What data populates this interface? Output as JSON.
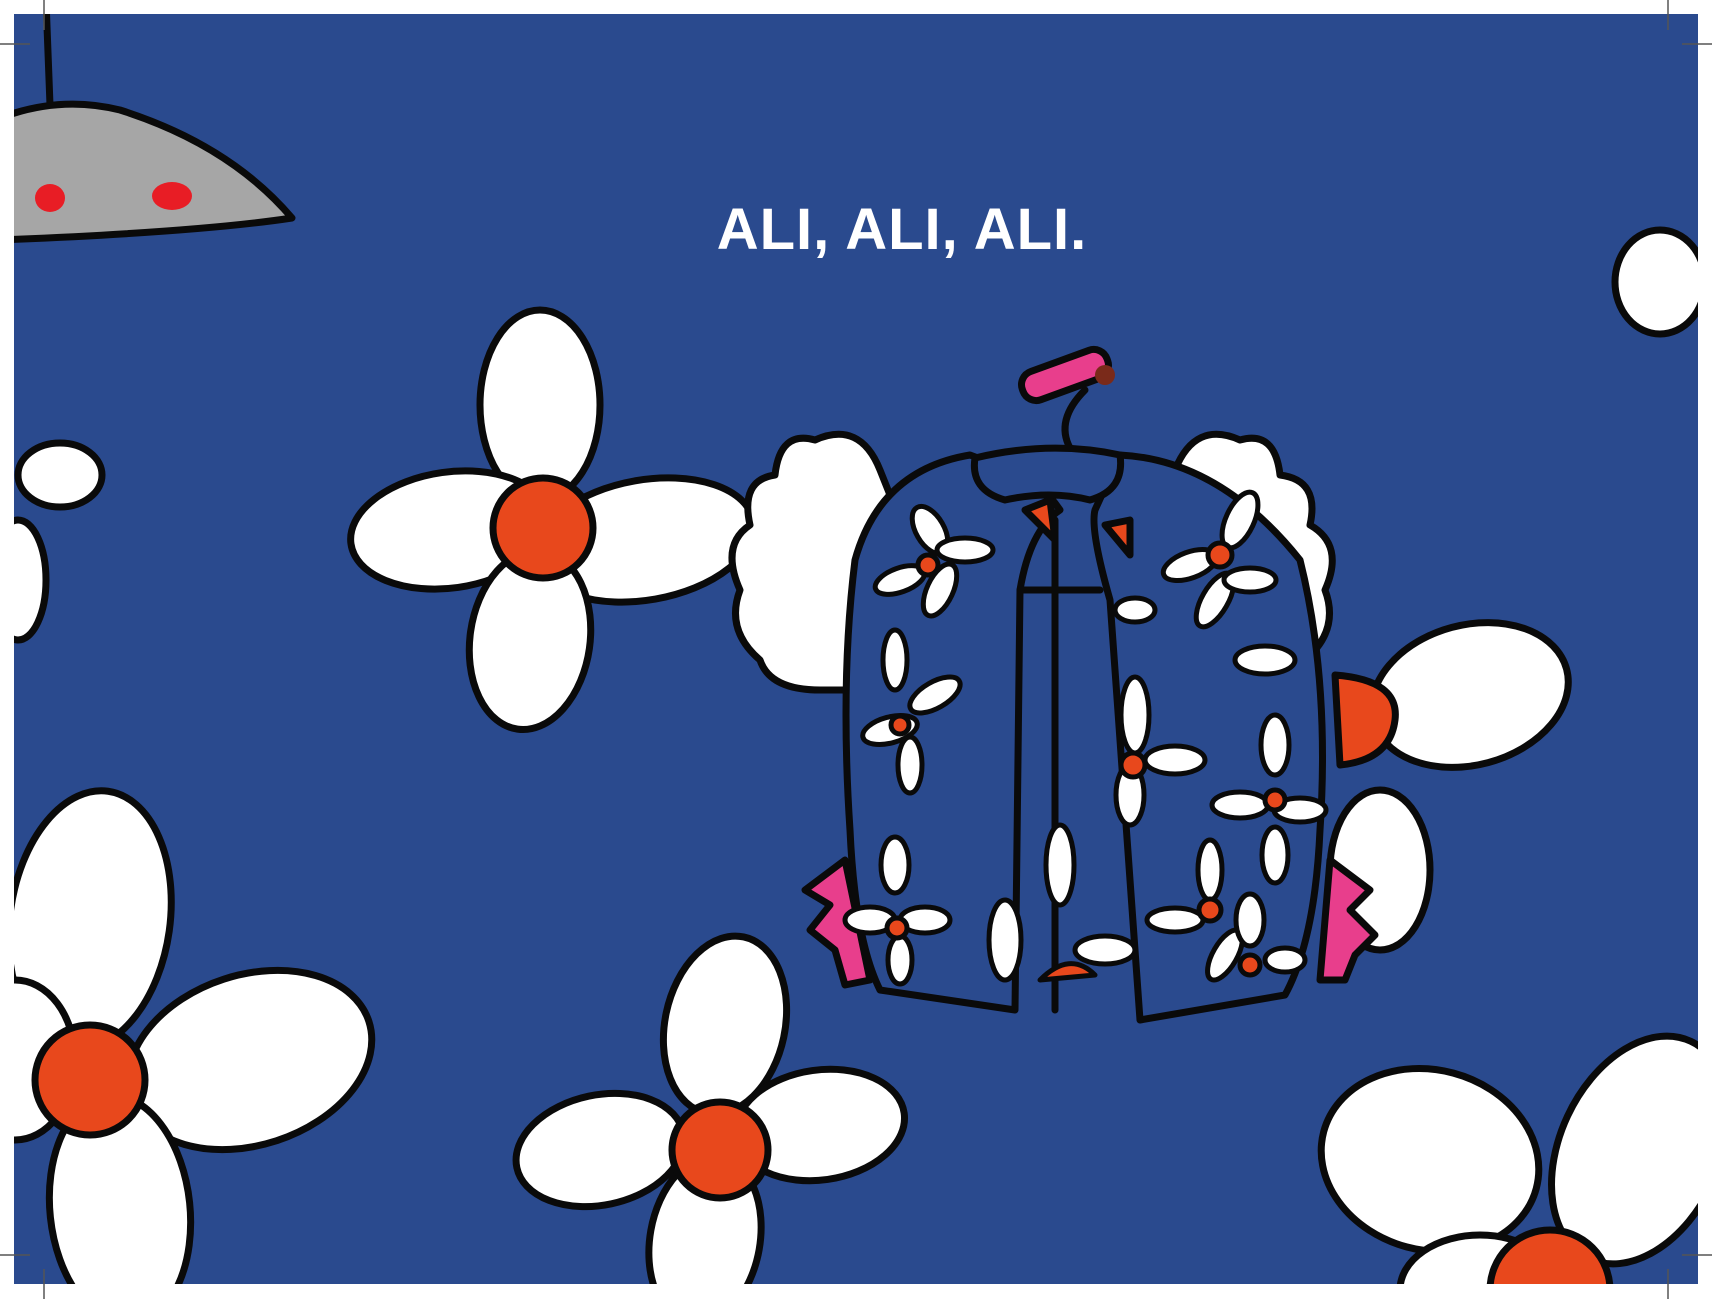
{
  "page": {
    "headline": "ALI, ALI, ALI.",
    "colors": {
      "background": "#2a4a8e",
      "petal": "#ffffff",
      "flower_center": "#e8481c",
      "outline": "#0a0a0a",
      "lamp": "#a6a6a6",
      "lamp_lights": "#e81d25",
      "ruffle_pink": "#e83e8c",
      "headline": "#ffffff"
    }
  }
}
